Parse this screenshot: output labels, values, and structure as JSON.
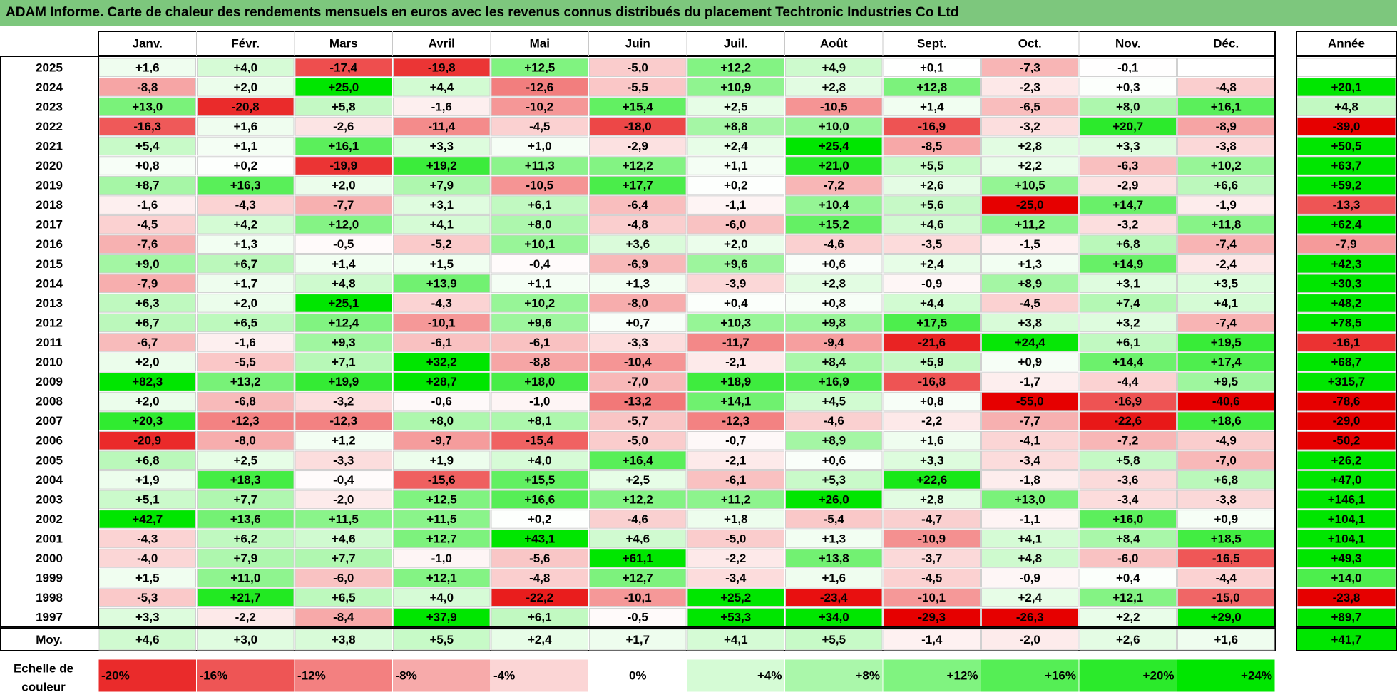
{
  "title": "ADAM Informe. Carte de chaleur des rendements mensuels en euros avec les revenus connus distribués du placement Techtronic Industries Co Ltd",
  "colors": {
    "title_bg": "#7dc77d",
    "max_green": "#00e600",
    "max_red": "#e60000",
    "neutral": "#ffffff"
  },
  "chart_data": {
    "type": "heatmap",
    "months": [
      "Janv.",
      "Févr.",
      "Mars",
      "Avril",
      "Mai",
      "Juin",
      "Juil.",
      "Août",
      "Sept.",
      "Oct.",
      "Nov.",
      "Déc."
    ],
    "year_header": "Année",
    "rows": [
      {
        "year": "2025",
        "values": [
          "+1,6",
          "+4,0",
          "-17,4",
          "-19,8",
          "+12,5",
          "-5,0",
          "+12,2",
          "+4,9",
          "+0,1",
          "-7,3",
          "-0,1",
          ""
        ],
        "annual": ""
      },
      {
        "year": "2024",
        "values": [
          "-8,8",
          "+2,0",
          "+25,0",
          "+4,4",
          "-12,6",
          "-5,5",
          "+10,9",
          "+2,8",
          "+12,8",
          "-2,3",
          "+0,3",
          "-4,8"
        ],
        "annual": "+20,1"
      },
      {
        "year": "2023",
        "values": [
          "+13,0",
          "-20,8",
          "+5,8",
          "-1,6",
          "-10,2",
          "+15,4",
          "+2,5",
          "-10,5",
          "+1,4",
          "-6,5",
          "+8,0",
          "+16,1"
        ],
        "annual": "+4,8"
      },
      {
        "year": "2022",
        "values": [
          "-16,3",
          "+1,6",
          "-2,6",
          "-11,4",
          "-4,5",
          "-18,0",
          "+8,8",
          "+10,0",
          "-16,9",
          "-3,2",
          "+20,7",
          "-8,9"
        ],
        "annual": "-39,0"
      },
      {
        "year": "2021",
        "values": [
          "+5,4",
          "+1,1",
          "+16,1",
          "+3,3",
          "+1,0",
          "-2,9",
          "+2,4",
          "+25,4",
          "-8,5",
          "+2,8",
          "+3,3",
          "-3,8"
        ],
        "annual": "+50,5"
      },
      {
        "year": "2020",
        "values": [
          "+0,8",
          "+0,2",
          "-19,9",
          "+19,2",
          "+11,3",
          "+12,2",
          "+1,1",
          "+21,0",
          "+5,5",
          "+2,2",
          "-6,3",
          "+10,2"
        ],
        "annual": "+63,7"
      },
      {
        "year": "2019",
        "values": [
          "+8,7",
          "+16,3",
          "+2,0",
          "+7,9",
          "-10,5",
          "+17,7",
          "+0,2",
          "-7,2",
          "+2,6",
          "+10,5",
          "-2,9",
          "+6,6"
        ],
        "annual": "+59,2"
      },
      {
        "year": "2018",
        "values": [
          "-1,6",
          "-4,3",
          "-7,7",
          "+3,1",
          "+6,1",
          "-6,4",
          "-1,1",
          "+10,4",
          "+5,6",
          "-25,0",
          "+14,7",
          "-1,9"
        ],
        "annual": "-13,3"
      },
      {
        "year": "2017",
        "values": [
          "-4,5",
          "+4,2",
          "+12,0",
          "+4,1",
          "+8,0",
          "-4,8",
          "-6,0",
          "+15,2",
          "+4,6",
          "+11,2",
          "-3,2",
          "+11,8"
        ],
        "annual": "+62,4"
      },
      {
        "year": "2016",
        "values": [
          "-7,6",
          "+1,3",
          "-0,5",
          "-5,2",
          "+10,1",
          "+3,6",
          "+2,0",
          "-4,6",
          "-3,5",
          "-1,5",
          "+6,8",
          "-7,4"
        ],
        "annual": "-7,9"
      },
      {
        "year": "2015",
        "values": [
          "+9,0",
          "+6,7",
          "+1,4",
          "+1,5",
          "-0,4",
          "-6,9",
          "+9,6",
          "+0,6",
          "+2,4",
          "+1,3",
          "+14,9",
          "-2,4"
        ],
        "annual": "+42,3"
      },
      {
        "year": "2014",
        "values": [
          "-7,9",
          "+1,7",
          "+4,8",
          "+13,9",
          "+1,1",
          "+1,3",
          "-3,9",
          "+2,8",
          "-0,9",
          "+8,9",
          "+3,1",
          "+3,5"
        ],
        "annual": "+30,3"
      },
      {
        "year": "2013",
        "values": [
          "+6,3",
          "+2,0",
          "+25,1",
          "-4,3",
          "+10,2",
          "-8,0",
          "+0,4",
          "+0,8",
          "+4,4",
          "-4,5",
          "+7,4",
          "+4,1"
        ],
        "annual": "+48,2"
      },
      {
        "year": "2012",
        "values": [
          "+6,7",
          "+6,5",
          "+12,4",
          "-10,1",
          "+9,6",
          "+0,7",
          "+10,3",
          "+9,8",
          "+17,5",
          "+3,8",
          "+3,2",
          "-7,4"
        ],
        "annual": "+78,5"
      },
      {
        "year": "2011",
        "values": [
          "-6,7",
          "-1,6",
          "+9,3",
          "-6,1",
          "-6,1",
          "-3,3",
          "-11,7",
          "-9,4",
          "-21,6",
          "+24,4",
          "+6,1",
          "+19,5"
        ],
        "annual": "-16,1"
      },
      {
        "year": "2010",
        "values": [
          "+2,0",
          "-5,5",
          "+7,1",
          "+32,2",
          "-8,8",
          "-10,4",
          "-2,1",
          "+8,4",
          "+5,9",
          "+0,9",
          "+14,4",
          "+17,4"
        ],
        "annual": "+68,7"
      },
      {
        "year": "2009",
        "values": [
          "+82,3",
          "+13,2",
          "+19,9",
          "+28,7",
          "+18,0",
          "-7,0",
          "+18,9",
          "+16,9",
          "-16,8",
          "-1,7",
          "-4,4",
          "+9,5"
        ],
        "annual": "+315,7"
      },
      {
        "year": "2008",
        "values": [
          "+2,0",
          "-6,8",
          "-3,2",
          "-0,6",
          "-1,0",
          "-13,2",
          "+14,1",
          "+4,5",
          "+0,8",
          "-55,0",
          "-16,9",
          "-40,6"
        ],
        "annual": "-78,6"
      },
      {
        "year": "2007",
        "values": [
          "+20,3",
          "-12,3",
          "-12,3",
          "+8,0",
          "+8,1",
          "-5,7",
          "-12,3",
          "-4,6",
          "-2,2",
          "-7,7",
          "-22,6",
          "+18,6"
        ],
        "annual": "-29,0"
      },
      {
        "year": "2006",
        "values": [
          "-20,9",
          "-8,0",
          "+1,2",
          "-9,7",
          "-15,4",
          "-5,0",
          "-0,7",
          "+8,9",
          "+1,6",
          "-4,1",
          "-7,2",
          "-4,9"
        ],
        "annual": "-50,2"
      },
      {
        "year": "2005",
        "values": [
          "+6,8",
          "+2,5",
          "-3,3",
          "+1,9",
          "+4,0",
          "+16,4",
          "-2,1",
          "+0,6",
          "+3,3",
          "-3,4",
          "+5,8",
          "-7,0"
        ],
        "annual": "+26,2"
      },
      {
        "year": "2004",
        "values": [
          "+1,9",
          "+18,3",
          "-0,4",
          "-15,6",
          "+15,5",
          "+2,5",
          "-6,1",
          "+5,3",
          "+22,6",
          "-1,8",
          "-3,6",
          "+6,8"
        ],
        "annual": "+47,0"
      },
      {
        "year": "2003",
        "values": [
          "+5,1",
          "+7,7",
          "-2,0",
          "+12,5",
          "+16,6",
          "+12,2",
          "+11,2",
          "+26,0",
          "+2,8",
          "+13,0",
          "-3,4",
          "-3,8"
        ],
        "annual": "+146,1"
      },
      {
        "year": "2002",
        "values": [
          "+42,7",
          "+13,6",
          "+11,5",
          "+11,5",
          "+0,2",
          "-4,6",
          "+1,8",
          "-5,4",
          "-4,7",
          "-1,1",
          "+16,0",
          "+0,9"
        ],
        "annual": "+104,1"
      },
      {
        "year": "2001",
        "values": [
          "-4,3",
          "+6,2",
          "+4,6",
          "+12,7",
          "+43,1",
          "+4,6",
          "-5,0",
          "+1,3",
          "-10,9",
          "+4,1",
          "+8,4",
          "+18,5"
        ],
        "annual": "+104,1"
      },
      {
        "year": "2000",
        "values": [
          "-4,0",
          "+7,9",
          "+7,7",
          "-1,0",
          "-5,6",
          "+61,1",
          "-2,2",
          "+13,8",
          "-3,7",
          "+4,8",
          "-6,0",
          "-16,5"
        ],
        "annual": "+49,3"
      },
      {
        "year": "1999",
        "values": [
          "+1,5",
          "+11,0",
          "-6,0",
          "+12,1",
          "-4,8",
          "+12,7",
          "-3,4",
          "+1,6",
          "-4,5",
          "-0,9",
          "+0,4",
          "-4,4"
        ],
        "annual": "+14,0"
      },
      {
        "year": "1998",
        "values": [
          "-5,3",
          "+21,7",
          "+6,5",
          "+4,0",
          "-22,2",
          "-10,1",
          "+25,2",
          "-23,4",
          "-10,1",
          "+2,4",
          "+12,1",
          "-15,0"
        ],
        "annual": "-23,8"
      },
      {
        "year": "1997",
        "values": [
          "+3,3",
          "-2,2",
          "-8,4",
          "+37,9",
          "+6,1",
          "-0,5",
          "+53,3",
          "+34,0",
          "-29,3",
          "-26,3",
          "+2,2",
          "+29,0"
        ],
        "annual": "+89,7"
      }
    ],
    "average": {
      "label": "Moy.",
      "values": [
        "+4,6",
        "+3,0",
        "+3,8",
        "+5,5",
        "+2,4",
        "+1,7",
        "+4,1",
        "+5,5",
        "-1,4",
        "-2,0",
        "+2,6",
        "+1,6"
      ],
      "annual": "+41,7"
    },
    "scale": {
      "label_line1": "Echelle de",
      "label_line2": "couleur",
      "steps": [
        {
          "label": "-20%",
          "value": -20
        },
        {
          "label": "-16%",
          "value": -16
        },
        {
          "label": "-12%",
          "value": -12
        },
        {
          "label": "-8%",
          "value": -8
        },
        {
          "label": "-4%",
          "value": -4
        },
        {
          "label": "0%",
          "value": 0
        },
        {
          "label": "+4%",
          "value": 4
        },
        {
          "label": "+8%",
          "value": 8
        },
        {
          "label": "+12%",
          "value": 12
        },
        {
          "label": "+16%",
          "value": 16
        },
        {
          "label": "+20%",
          "value": 20
        },
        {
          "label": "+24%",
          "value": 24
        }
      ]
    }
  }
}
